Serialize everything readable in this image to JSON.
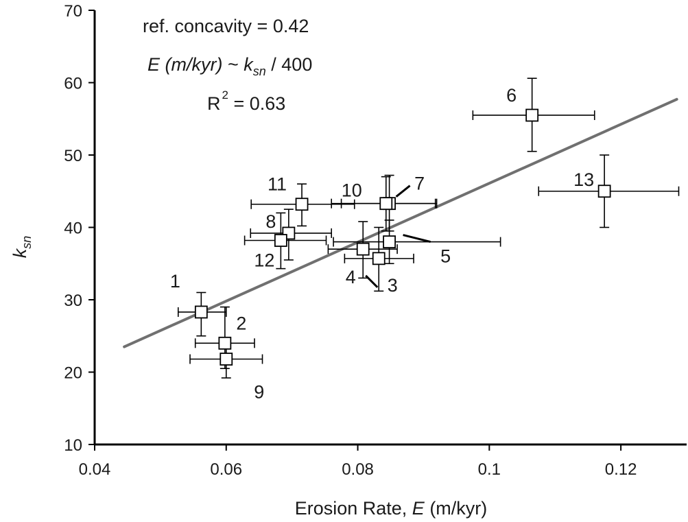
{
  "chart_data": {
    "type": "scatter",
    "title": "",
    "xlabel": {
      "prefix": "Erosion Rate, ",
      "italic": "E",
      "suffix": " (m/kyr)"
    },
    "ylabel": {
      "base": "k",
      "subscript": "sn"
    },
    "xlim": [
      0.04,
      0.13
    ],
    "ylim": [
      10,
      70
    ],
    "x_ticks": [
      {
        "value": 0.04,
        "label": "0.04"
      },
      {
        "value": 0.06,
        "label": "0.06"
      },
      {
        "value": 0.08,
        "label": "0.08"
      },
      {
        "value": 0.1,
        "label": "0.1"
      },
      {
        "value": 0.12,
        "label": "0.12"
      }
    ],
    "y_ticks": [
      {
        "value": 10,
        "label": "10"
      },
      {
        "value": 20,
        "label": "20"
      },
      {
        "value": 30,
        "label": "30"
      },
      {
        "value": 40,
        "label": "40"
      },
      {
        "value": 50,
        "label": "50"
      },
      {
        "value": 60,
        "label": "60"
      },
      {
        "value": 70,
        "label": "70"
      }
    ],
    "grid": false,
    "legend": "none",
    "colors": {
      "fit_line": "#707070",
      "marker_fill": "#ffffff",
      "marker_stroke": "#000000"
    },
    "annotations": {
      "line1": "ref. concavity = 0.42",
      "line2": {
        "italic_e": "E",
        "italic_units": " (m/kyr)",
        "tilde": " ~ ",
        "k": "k",
        "sub": "sn",
        "rest": " / 400"
      },
      "line3": {
        "r": "R",
        "sup": "2",
        "rest": " = 0.63"
      }
    },
    "fit_line": {
      "label": "E (m/kyr) ~ ksn / 400",
      "x": [
        0.0445,
        0.1285
      ],
      "y": [
        23.5,
        57.7
      ]
    },
    "points": [
      {
        "label": "1",
        "x": 0.0562,
        "y": 28.3,
        "xerr": [
          0.0527,
          0.06
        ],
        "yerr": [
          25.0,
          31.0
        ]
      },
      {
        "label": "2",
        "x": 0.0598,
        "y": 24.0,
        "xerr": [
          0.0553,
          0.0643
        ],
        "yerr": [
          20.5,
          29.0
        ]
      },
      {
        "label": "3",
        "x": 0.0832,
        "y": 35.7,
        "xerr": [
          0.078,
          0.0885
        ],
        "yerr": [
          31.2,
          40.0
        ]
      },
      {
        "label": "4",
        "x": 0.0808,
        "y": 37.0,
        "xerr": [
          0.0755,
          0.086
        ],
        "yerr": [
          33.0,
          40.8
        ]
      },
      {
        "label": "5",
        "x": 0.0848,
        "y": 38.0,
        "xerr": [
          0.0763,
          0.1017
        ],
        "yerr": [
          35.0,
          41.0
        ]
      },
      {
        "label": "6",
        "x": 0.1065,
        "y": 55.5,
        "xerr": [
          0.0975,
          0.116
        ],
        "yerr": [
          50.5,
          60.6
        ]
      },
      {
        "label": "7",
        "x": 0.0848,
        "y": 43.3,
        "xerr": [
          0.0775,
          0.092
        ],
        "yerr": [
          39.5,
          47.2
        ]
      },
      {
        "label": "8",
        "x": 0.0695,
        "y": 39.2,
        "xerr": [
          0.0637,
          0.076
        ],
        "yerr": [
          35.5,
          42.5
        ]
      },
      {
        "label": "9",
        "x": 0.06,
        "y": 21.8,
        "xerr": [
          0.0545,
          0.0655
        ],
        "yerr": [
          19.2,
          24.0
        ]
      },
      {
        "label": "10",
        "x": 0.0843,
        "y": 43.3,
        "xerr": [
          0.076,
          0.0918
        ],
        "yerr": [
          39.5,
          47.0
        ]
      },
      {
        "label": "11",
        "x": 0.0715,
        "y": 43.2,
        "xerr": [
          0.0638,
          0.0795
        ],
        "yerr": [
          40.2,
          46.0
        ]
      },
      {
        "label": "12",
        "x": 0.0683,
        "y": 38.2,
        "xerr": [
          0.0628,
          0.0752
        ],
        "yerr": [
          34.3,
          42.0
        ]
      },
      {
        "label": "13",
        "x": 0.1175,
        "y": 45.0,
        "xerr": [
          0.1075,
          0.1288
        ],
        "yerr": [
          40.0,
          50.0
        ]
      }
    ]
  }
}
